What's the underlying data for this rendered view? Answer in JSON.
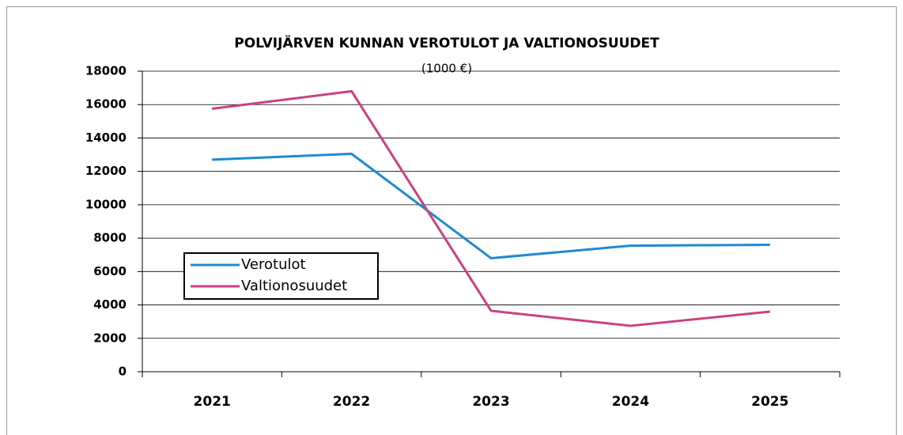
{
  "chart_data": {
    "type": "line",
    "title": "POLVIJÄRVEN KUNNAN VEROTULOT JA VALTIONOSUUDET",
    "subtitle": "(1000 €)",
    "categories": [
      "2021",
      "2022",
      "2023",
      "2024",
      "2025"
    ],
    "series": [
      {
        "name": "Verotulot",
        "color": "#1f8ad4",
        "values": [
          12700,
          13050,
          6800,
          7550,
          7600
        ]
      },
      {
        "name": "Valtionosuudet",
        "color": "#c9427f",
        "values": [
          15750,
          16800,
          3650,
          2750,
          3600
        ]
      }
    ],
    "ylim": [
      0,
      18000
    ],
    "yticks": [
      0,
      2000,
      4000,
      6000,
      8000,
      10000,
      12000,
      14000,
      16000,
      18000
    ],
    "grid": true,
    "legend": "center-left"
  }
}
